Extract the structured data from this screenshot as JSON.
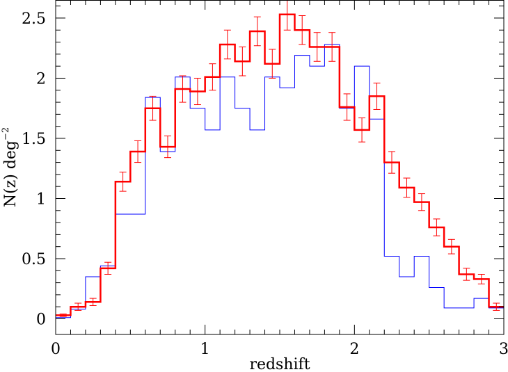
{
  "chart_data": {
    "type": "line",
    "xlabel": "redshift",
    "ylabel_main": "N(z) deg",
    "ylabel_sup": "−2",
    "xlim": [
      0,
      3
    ],
    "ylim": [
      -0.13,
      2.65
    ],
    "grid": false,
    "x_ticks": [
      0,
      1,
      2,
      3
    ],
    "x_tick_labels": [
      "0",
      "1",
      "2",
      "3"
    ],
    "y_ticks": [
      0,
      0.5,
      1,
      1.5,
      2,
      2.5
    ],
    "y_tick_labels": [
      "0",
      "0.5",
      "1",
      "1.5",
      "2",
      "2.5"
    ],
    "bin_edges": [
      0,
      0.1,
      0.2,
      0.3,
      0.4,
      0.5,
      0.6,
      0.7,
      0.8,
      0.9,
      1.0,
      1.1,
      1.2,
      1.3,
      1.4,
      1.5,
      1.6,
      1.7,
      1.8,
      1.9,
      2.0,
      2.1,
      2.2,
      2.3,
      2.4,
      2.5,
      2.6,
      2.7,
      2.8,
      2.9,
      3.0
    ],
    "series": [
      {
        "style": "histogram",
        "color": "#0000ff",
        "values": [
          0.01,
          0.08,
          0.35,
          0.44,
          0.87,
          0.87,
          1.84,
          1.39,
          2.01,
          1.75,
          1.57,
          2.01,
          1.75,
          1.57,
          2.01,
          1.92,
          2.19,
          2.1,
          2.28,
          1.75,
          2.1,
          1.66,
          0.52,
          0.35,
          0.52,
          0.26,
          0.09,
          0.09,
          0.17,
          0.09
        ]
      },
      {
        "style": "histogram-errorbars",
        "color": "#ff0000",
        "values": [
          0.03,
          0.1,
          0.14,
          0.42,
          1.14,
          1.39,
          1.75,
          1.43,
          1.91,
          1.89,
          2.01,
          2.28,
          2.14,
          2.39,
          2.12,
          2.53,
          2.4,
          2.26,
          2.26,
          1.76,
          1.57,
          1.85,
          1.3,
          1.09,
          0.97,
          0.76,
          0.6,
          0.37,
          0.33,
          0.1
        ],
        "errors": [
          0.01,
          0.03,
          0.03,
          0.05,
          0.08,
          0.09,
          0.1,
          0.09,
          0.11,
          0.11,
          0.11,
          0.12,
          0.12,
          0.12,
          0.12,
          0.13,
          0.12,
          0.12,
          0.12,
          0.11,
          0.1,
          0.11,
          0.09,
          0.08,
          0.07,
          0.07,
          0.06,
          0.05,
          0.04,
          0.03
        ]
      }
    ]
  }
}
